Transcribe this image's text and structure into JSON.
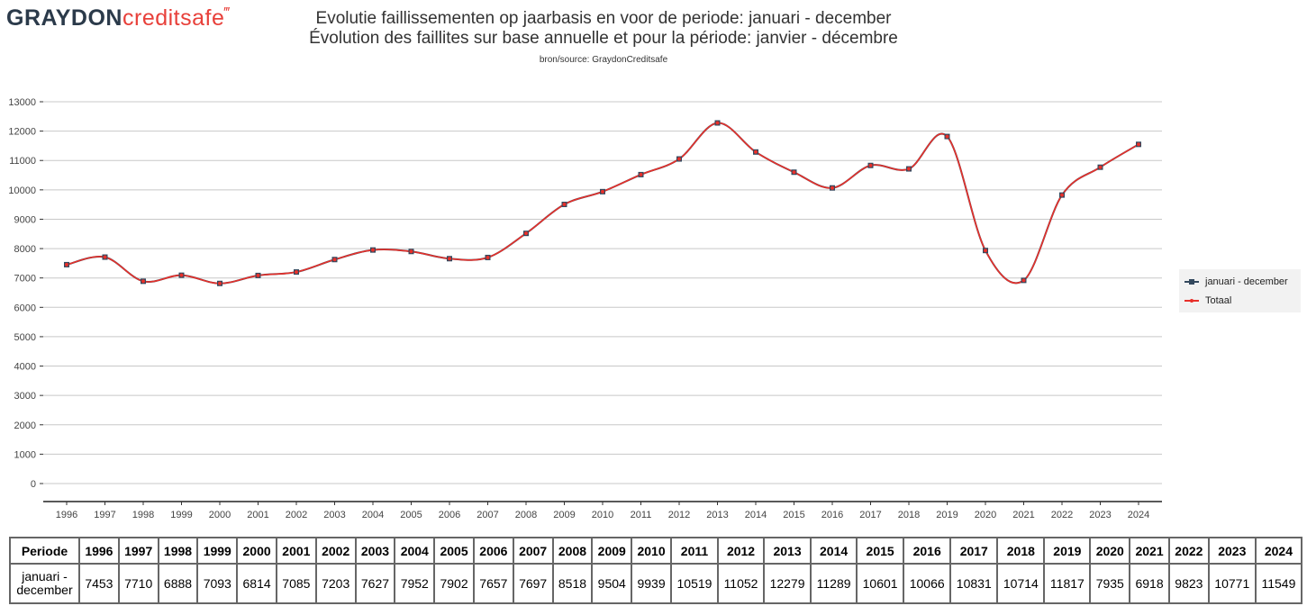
{
  "logo": {
    "part1": "GRAYDON",
    "part2": "creditsafe"
  },
  "title_line1": "Evolutie faillissementen op jaarbasis en voor de periode: januari - december",
  "title_line2": "Évolution des faillites sur base annuelle et pour la période: janvier - décembre",
  "source": "bron/source: GraydonCreditsafe",
  "legend": {
    "items": [
      {
        "label": "januari - december",
        "color": "#34495e"
      },
      {
        "label": "Totaal",
        "color": "#e8302a"
      }
    ]
  },
  "table": {
    "header_label": "Periode",
    "row_label": "januari - december"
  },
  "chart_data": {
    "type": "line",
    "title": "Evolutie faillissementen op jaarbasis en voor de periode: januari - december / Évolution des faillites sur base annuelle et pour la période: janvier - décembre",
    "x": [
      "1996",
      "1997",
      "1998",
      "1999",
      "2000",
      "2001",
      "2002",
      "2003",
      "2004",
      "2005",
      "2006",
      "2007",
      "2008",
      "2009",
      "2010",
      "2011",
      "2012",
      "2013",
      "2014",
      "2015",
      "2016",
      "2017",
      "2018",
      "2019",
      "2020",
      "2021",
      "2022",
      "2023",
      "2024"
    ],
    "series": [
      {
        "name": "januari - december",
        "color": "#34495e",
        "marker": "square",
        "values": [
          7453,
          7710,
          6888,
          7093,
          6814,
          7085,
          7203,
          7627,
          7952,
          7902,
          7657,
          7697,
          8518,
          9504,
          9939,
          10519,
          11052,
          12279,
          11289,
          10601,
          10066,
          10831,
          10714,
          11817,
          7935,
          6918,
          9823,
          10771,
          11549
        ]
      },
      {
        "name": "Totaal",
        "color": "#e8302a",
        "marker": "dot",
        "values": [
          7453,
          7710,
          6888,
          7093,
          6814,
          7085,
          7203,
          7627,
          7952,
          7902,
          7657,
          7697,
          8518,
          9504,
          9939,
          10519,
          11052,
          12279,
          11289,
          10601,
          10066,
          10831,
          10714,
          11817,
          7935,
          6918,
          9823,
          10771,
          11549
        ]
      }
    ],
    "ylim": [
      0,
      13000
    ],
    "yticks": [
      0,
      1000,
      2000,
      3000,
      4000,
      5000,
      6000,
      7000,
      8000,
      9000,
      10000,
      11000,
      12000,
      13000
    ],
    "grid": "horizontal",
    "legend_position": "right"
  }
}
